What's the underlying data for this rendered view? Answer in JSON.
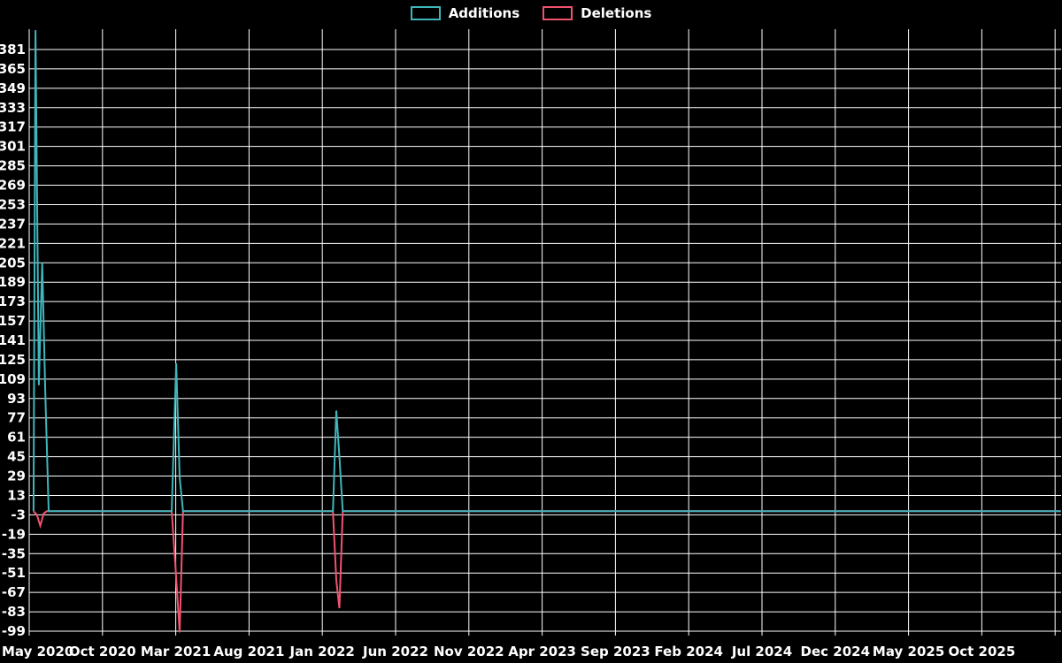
{
  "legend": {
    "items": [
      {
        "label": "Additions",
        "color": "#3fb6bc"
      },
      {
        "label": "Deletions",
        "color": "#f0536e"
      }
    ]
  },
  "chart_data": {
    "type": "line",
    "title": "",
    "legend_position": "top-center",
    "grid": true,
    "background_color": "#000000",
    "grid_color": "#ffffff",
    "text_color": "#ffffff",
    "x_axis": {
      "type": "date",
      "start": "2020-05-01",
      "tick_interval_months": 5,
      "tick_labels": [
        "May 2020",
        "Oct 2020",
        "Mar 2021",
        "Aug 2021",
        "Jan 2022",
        "Jun 2022",
        "Nov 2022",
        "Apr 2023",
        "Sep 2023",
        "Feb 2024",
        "Jul 2024",
        "Dec 2024",
        "May 2025",
        "Oct 2025"
      ]
    },
    "y_axis": {
      "ticks": [
        381,
        365,
        349,
        333,
        317,
        301,
        285,
        269,
        253,
        237,
        221,
        205,
        189,
        173,
        157,
        141,
        125,
        109,
        93,
        77,
        61,
        45,
        29,
        13,
        -3,
        -19,
        -35,
        -51,
        -67,
        -83,
        -99
      ],
      "range": [
        -103,
        398
      ]
    },
    "series": [
      {
        "name": "Additions",
        "color": "#3fb6bc",
        "points": [
          [
            "2020-05-10",
            0
          ],
          [
            "2020-05-14",
            397
          ],
          [
            "2020-05-21",
            104
          ],
          [
            "2020-05-28",
            205
          ],
          [
            "2020-06-04",
            97
          ],
          [
            "2020-06-11",
            0
          ],
          [
            "2021-02-23",
            0
          ],
          [
            "2021-03-02",
            122
          ],
          [
            "2021-03-09",
            28
          ],
          [
            "2021-03-16",
            0
          ],
          [
            "2022-01-23",
            0
          ],
          [
            "2022-01-30",
            83
          ],
          [
            "2022-02-06",
            45
          ],
          [
            "2022-02-13",
            0
          ],
          [
            "2026-03-13",
            0
          ]
        ]
      },
      {
        "name": "Deletions",
        "color": "#f0536e",
        "points": [
          [
            "2020-05-10",
            0
          ],
          [
            "2020-05-17",
            -3
          ],
          [
            "2020-05-24",
            -12
          ],
          [
            "2020-05-31",
            -2
          ],
          [
            "2020-06-07",
            0
          ],
          [
            "2021-02-23",
            0
          ],
          [
            "2021-03-02",
            -55
          ],
          [
            "2021-03-09",
            -100
          ],
          [
            "2021-03-16",
            0
          ],
          [
            "2022-01-23",
            0
          ],
          [
            "2022-01-30",
            -57
          ],
          [
            "2022-02-06",
            -80
          ],
          [
            "2022-02-13",
            0
          ],
          [
            "2026-03-13",
            0
          ]
        ]
      }
    ]
  }
}
